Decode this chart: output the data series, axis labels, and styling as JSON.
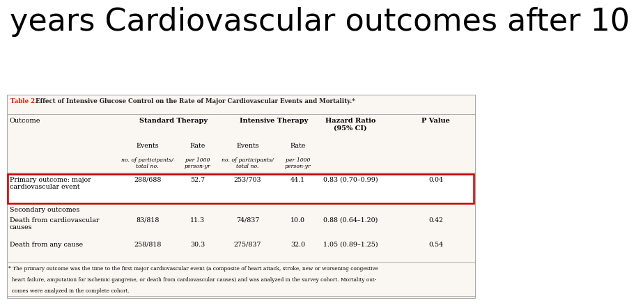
{
  "title": "years Cardiovascular outcomes after 10",
  "title_fontsize": 32,
  "background_color": "#ffffff",
  "table_caption_red": "Table 2.",
  "table_caption_black": " Effect of Intensive Glucose Control on the Rate of Major Cardiovascular Events and Mortality.*",
  "col_headers_row1": [
    "Outcome",
    "Standard Therapy",
    "Intensive Therapy",
    "Hazard Ratio\n(95% CI)",
    "P Value"
  ],
  "col_headers_row2_events": [
    "Events",
    "Rate",
    "Events",
    "Rate"
  ],
  "col_headers_row3_italic": [
    "no. of participants/\ntotal no.",
    "per 1000\nperson-yr",
    "no. of participants/\ntotal no.",
    "per 1000\nperson-yr"
  ],
  "rows": [
    {
      "outcome": "Primary outcome: major\ncardiovascular event",
      "st_events": "288/688",
      "st_rate": "52.7",
      "it_events": "253/703",
      "it_rate": "44.1",
      "hr": "0.83 (0.70–0.99)",
      "pval": "0.04",
      "highlight": true,
      "section_header": false
    },
    {
      "outcome": "Secondary outcomes",
      "st_events": "",
      "st_rate": "",
      "it_events": "",
      "it_rate": "",
      "hr": "",
      "pval": "",
      "highlight": false,
      "section_header": true
    },
    {
      "outcome": "Death from cardiovascular\ncauses",
      "st_events": "83/818",
      "st_rate": "11.3",
      "it_events": "74/837",
      "it_rate": "10.0",
      "hr": "0.88 (0.64–1.20)",
      "pval": "0.42",
      "highlight": false,
      "section_header": false
    },
    {
      "outcome": "Death from any cause",
      "st_events": "258/818",
      "st_rate": "30.3",
      "it_events": "275/837",
      "it_rate": "32.0",
      "hr": "1.05 (0.89–1.25)",
      "pval": "0.54",
      "highlight": false,
      "section_header": false
    }
  ],
  "footnote_line1": "* The primary outcome was the time to the first major cardiovascular event (a composite of heart attack, stroke, new or worsening congestive",
  "footnote_line2": "  heart failure, amputation for ischemic gangrene, or death from cardiovascular causes) and was analyzed in the survey cohort. Mortality out-",
  "footnote_line3": "  comes were analyzed in the complete cohort.",
  "table_bg": "#faf6f1",
  "highlight_border": "#cc0000",
  "caption_color": "#cc2200",
  "border_color": "#aaaaaa",
  "text_color": "#222222"
}
